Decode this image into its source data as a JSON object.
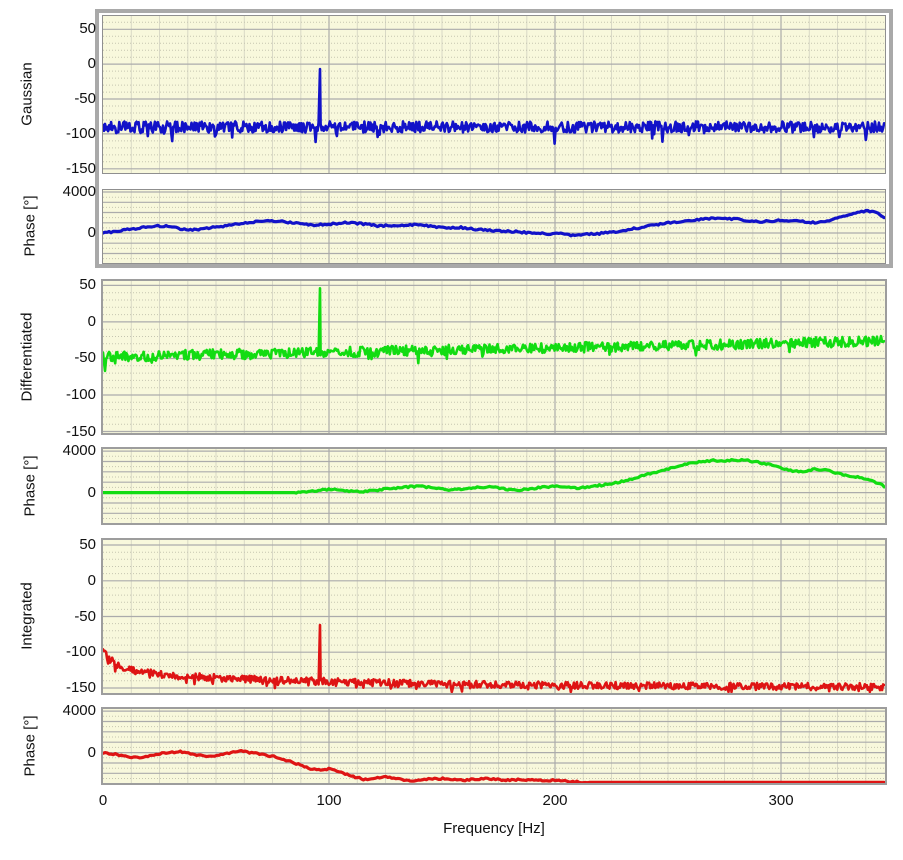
{
  "colors": {
    "plot_background": "#F8F8DC",
    "grid_major": "#ABABAB",
    "grid_minor_dotted": "#C5C5B0",
    "grid_minor_vertical": "#D9D9C6",
    "selection_frame": "#A9A9A9",
    "axis_text": "#111111",
    "series_blue": "#1212C8",
    "series_green": "#12DC12",
    "series_red": "#DE1414"
  },
  "chart_data": {
    "type": "line",
    "xlabel": "Frequency [Hz]",
    "xlim": [
      0,
      346
    ],
    "xticks": [
      0,
      100,
      200,
      300
    ],
    "x_grid": {
      "minor_step": 12.5,
      "major_step": 100
    },
    "plots": [
      {
        "id": "gaussian-magnitude",
        "ylabel": "Gaussian",
        "color": "#1212C8",
        "ylim": [
          -156,
          69
        ],
        "yticks": [
          50,
          0,
          -50,
          -100,
          -150
        ],
        "y_grid": {
          "major_step": 50,
          "minor_step": 10
        },
        "framed": true,
        "series": {
          "kind": "noisy-magnitude",
          "envelope": [
            [
              0,
              -90
            ],
            [
              346,
              -90
            ]
          ],
          "noise": 8,
          "dip_prob": 0.05,
          "dip_extra": 18,
          "spike": {
            "freq": 96,
            "peak": -7
          }
        }
      },
      {
        "id": "gaussian-phase",
        "ylabel": "Phase [°]",
        "color": "#1212C8",
        "ylim": [
          -2930,
          4200
        ],
        "yticks": [
          4000,
          0
        ],
        "y_grid": {
          "major_step": 1000,
          "minor_step": 500
        },
        "framed": true,
        "series": {
          "kind": "noisy-line",
          "noise": 90,
          "points": [
            [
              0,
              0
            ],
            [
              8,
              250
            ],
            [
              15,
              450
            ],
            [
              22,
              650
            ],
            [
              28,
              700
            ],
            [
              33,
              450
            ],
            [
              40,
              300
            ],
            [
              48,
              500
            ],
            [
              55,
              750
            ],
            [
              62,
              950
            ],
            [
              70,
              1150
            ],
            [
              78,
              1200
            ],
            [
              85,
              950
            ],
            [
              92,
              750
            ],
            [
              100,
              850
            ],
            [
              108,
              1000
            ],
            [
              115,
              900
            ],
            [
              122,
              700
            ],
            [
              130,
              750
            ],
            [
              138,
              800
            ],
            [
              145,
              650
            ],
            [
              152,
              500
            ],
            [
              158,
              550
            ],
            [
              165,
              350
            ],
            [
              172,
              250
            ],
            [
              180,
              150
            ],
            [
              188,
              50
            ],
            [
              196,
              -100
            ],
            [
              202,
              -50
            ],
            [
              208,
              -250
            ],
            [
              214,
              -150
            ],
            [
              220,
              -50
            ],
            [
              226,
              100
            ],
            [
              232,
              300
            ],
            [
              238,
              550
            ],
            [
              244,
              800
            ],
            [
              250,
              1000
            ],
            [
              256,
              1150
            ],
            [
              262,
              1300
            ],
            [
              268,
              1400
            ],
            [
              274,
              1450
            ],
            [
              280,
              1350
            ],
            [
              286,
              1200
            ],
            [
              292,
              1100
            ],
            [
              298,
              1200
            ],
            [
              304,
              1250
            ],
            [
              310,
              1100
            ],
            [
              316,
              1000
            ],
            [
              322,
              1300
            ],
            [
              328,
              1700
            ],
            [
              334,
              2000
            ],
            [
              338,
              2150
            ],
            [
              342,
              2050
            ],
            [
              346,
              1350
            ]
          ]
        }
      },
      {
        "id": "differentiated-magnitude",
        "ylabel": "Differentiated",
        "color": "#12DC12",
        "ylim": [
          -152,
          56
        ],
        "yticks": [
          50,
          0,
          -50,
          -100,
          -150
        ],
        "y_grid": {
          "major_step": 50,
          "minor_step": 10
        },
        "framed": false,
        "series": {
          "kind": "noisy-magnitude",
          "envelope": [
            [
              0,
              -48
            ],
            [
              40,
              -45
            ],
            [
              80,
              -43
            ],
            [
              96,
              -42
            ],
            [
              140,
              -39
            ],
            [
              180,
              -37
            ],
            [
              220,
              -34
            ],
            [
              260,
              -32
            ],
            [
              300,
              -29
            ],
            [
              346,
              -26
            ]
          ],
          "noise": 7,
          "dip_prob": 0.05,
          "dip_extra": 13,
          "spike": {
            "freq": 96,
            "peak": 46
          }
        }
      },
      {
        "id": "differentiated-phase",
        "ylabel": "Phase [°]",
        "color": "#12DC12",
        "ylim": [
          -2930,
          4200
        ],
        "yticks": [
          4000,
          0
        ],
        "y_grid": {
          "major_step": 1000,
          "minor_step": 500
        },
        "framed": false,
        "series": {
          "kind": "noisy-line",
          "noise": 80,
          "flat_until": 85,
          "points": [
            [
              0,
              0
            ],
            [
              85,
              0
            ],
            [
              90,
              80
            ],
            [
              95,
              180
            ],
            [
              100,
              300
            ],
            [
              105,
              250
            ],
            [
              110,
              120
            ],
            [
              115,
              80
            ],
            [
              120,
              200
            ],
            [
              125,
              350
            ],
            [
              130,
              450
            ],
            [
              135,
              550
            ],
            [
              140,
              600
            ],
            [
              145,
              500
            ],
            [
              150,
              350
            ],
            [
              155,
              250
            ],
            [
              160,
              350
            ],
            [
              165,
              500
            ],
            [
              170,
              550
            ],
            [
              175,
              450
            ],
            [
              180,
              300
            ],
            [
              185,
              250
            ],
            [
              190,
              400
            ],
            [
              195,
              550
            ],
            [
              200,
              600
            ],
            [
              205,
              550
            ],
            [
              210,
              450
            ],
            [
              215,
              550
            ],
            [
              220,
              700
            ],
            [
              225,
              850
            ],
            [
              230,
              1100
            ],
            [
              235,
              1400
            ],
            [
              240,
              1700
            ],
            [
              245,
              2000
            ],
            [
              250,
              2300
            ],
            [
              255,
              2600
            ],
            [
              260,
              2850
            ],
            [
              265,
              3000
            ],
            [
              270,
              3100
            ],
            [
              275,
              3050
            ],
            [
              280,
              3150
            ],
            [
              285,
              3100
            ],
            [
              290,
              2900
            ],
            [
              295,
              2700
            ],
            [
              300,
              2400
            ],
            [
              305,
              2100
            ],
            [
              310,
              2050
            ],
            [
              315,
              2250
            ],
            [
              320,
              2150
            ],
            [
              325,
              1850
            ],
            [
              330,
              1600
            ],
            [
              335,
              1450
            ],
            [
              340,
              1200
            ],
            [
              343,
              900
            ],
            [
              346,
              550
            ]
          ]
        }
      },
      {
        "id": "integrated-magnitude",
        "ylabel": "Integrated",
        "color": "#DE1414",
        "ylim": [
          -157,
          57
        ],
        "yticks": [
          50,
          0,
          -50,
          -100,
          -150
        ],
        "y_grid": {
          "major_step": 50,
          "minor_step": 10
        },
        "framed": false,
        "series": {
          "kind": "noisy-magnitude",
          "envelope": [
            [
              0,
              -95
            ],
            [
              1,
              -102
            ],
            [
              3,
              -110
            ],
            [
              6,
              -117
            ],
            [
              10,
              -122
            ],
            [
              15,
              -126
            ],
            [
              20,
              -129
            ],
            [
              30,
              -132
            ],
            [
              45,
              -135
            ],
            [
              60,
              -137
            ],
            [
              80,
              -139
            ],
            [
              100,
              -141
            ],
            [
              130,
              -143
            ],
            [
              160,
              -145
            ],
            [
              200,
              -146
            ],
            [
              250,
              -147
            ],
            [
              300,
              -148
            ],
            [
              346,
              -148
            ]
          ],
          "noise": 5,
          "dip_prob": 0.07,
          "dip_extra": 11,
          "spike": {
            "freq": 96,
            "peak": -62
          }
        }
      },
      {
        "id": "integrated-phase",
        "ylabel": "Phase [°]",
        "color": "#DE1414",
        "ylim": [
          -2930,
          4200
        ],
        "yticks": [
          4000,
          0
        ],
        "y_grid": {
          "major_step": 1000,
          "minor_step": 500
        },
        "framed": false,
        "series": {
          "kind": "noisy-line",
          "noise": 80,
          "flat_after": 215,
          "points": [
            [
              0,
              -50
            ],
            [
              5,
              -150
            ],
            [
              10,
              -350
            ],
            [
              14,
              -500
            ],
            [
              18,
              -420
            ],
            [
              22,
              -200
            ],
            [
              26,
              -80
            ],
            [
              30,
              0
            ],
            [
              34,
              80
            ],
            [
              38,
              -50
            ],
            [
              42,
              -250
            ],
            [
              46,
              -350
            ],
            [
              50,
              -250
            ],
            [
              54,
              -100
            ],
            [
              58,
              50
            ],
            [
              61,
              150
            ],
            [
              64,
              50
            ],
            [
              68,
              -100
            ],
            [
              72,
              -250
            ],
            [
              76,
              -400
            ],
            [
              80,
              -650
            ],
            [
              84,
              -950
            ],
            [
              88,
              -1250
            ],
            [
              92,
              -1550
            ],
            [
              96,
              -1700
            ],
            [
              100,
              -1550
            ],
            [
              104,
              -1750
            ],
            [
              108,
              -2100
            ],
            [
              112,
              -2400
            ],
            [
              116,
              -2600
            ],
            [
              120,
              -2500
            ],
            [
              124,
              -2350
            ],
            [
              128,
              -2450
            ],
            [
              132,
              -2600
            ],
            [
              136,
              -2700
            ],
            [
              140,
              -2650
            ],
            [
              145,
              -2550
            ],
            [
              150,
              -2500
            ],
            [
              155,
              -2600
            ],
            [
              160,
              -2650
            ],
            [
              165,
              -2550
            ],
            [
              170,
              -2500
            ],
            [
              175,
              -2600
            ],
            [
              180,
              -2650
            ],
            [
              185,
              -2600
            ],
            [
              190,
              -2650
            ],
            [
              195,
              -2700
            ],
            [
              200,
              -2650
            ],
            [
              205,
              -2750
            ],
            [
              210,
              -2820
            ],
            [
              215,
              -2870
            ],
            [
              346,
              -2870
            ]
          ]
        }
      }
    ]
  }
}
